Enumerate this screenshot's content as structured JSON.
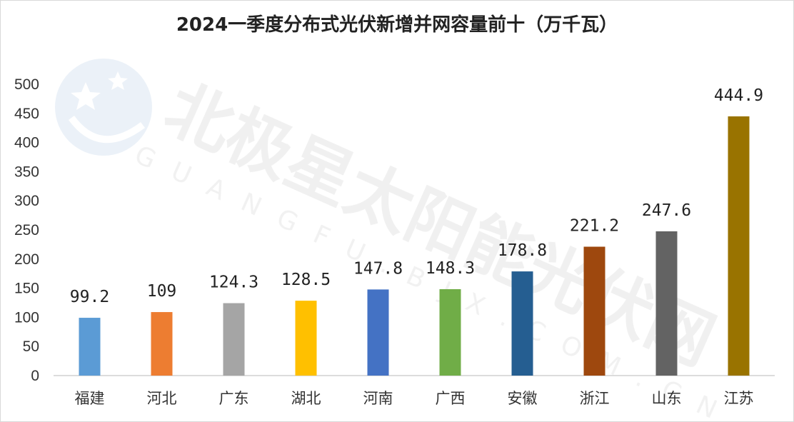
{
  "chart_data": {
    "type": "bar",
    "title": "2024一季度分布式光伏新增并网容量前十（万千瓦）",
    "xlabel": "",
    "ylabel": "",
    "ylim": [
      0,
      500
    ],
    "yticks": [
      0,
      50,
      100,
      150,
      200,
      250,
      300,
      350,
      400,
      450,
      500
    ],
    "grid": false,
    "legend": "none",
    "categories": [
      "福建",
      "河北",
      "广东",
      "湖北",
      "河南",
      "广西",
      "安徽",
      "浙江",
      "山东",
      "江苏"
    ],
    "values": [
      99.2,
      109,
      124.3,
      128.5,
      147.8,
      148.3,
      178.8,
      221.2,
      247.6,
      444.9
    ],
    "data_labels": [
      "99.2",
      "109",
      "124.3",
      "128.5",
      "147.8",
      "148.3",
      "178.8",
      "221.2",
      "247.6",
      "444.9"
    ],
    "colors": [
      "#5b9bd5",
      "#ed7d31",
      "#a5a5a5",
      "#ffc000",
      "#4472c4",
      "#70ad47",
      "#255e91",
      "#9e480e",
      "#636363",
      "#997300"
    ]
  },
  "watermark": {
    "text": "北极星太阳能光伏网",
    "subtext": "GUANGFU.BJX.COM.CN"
  }
}
